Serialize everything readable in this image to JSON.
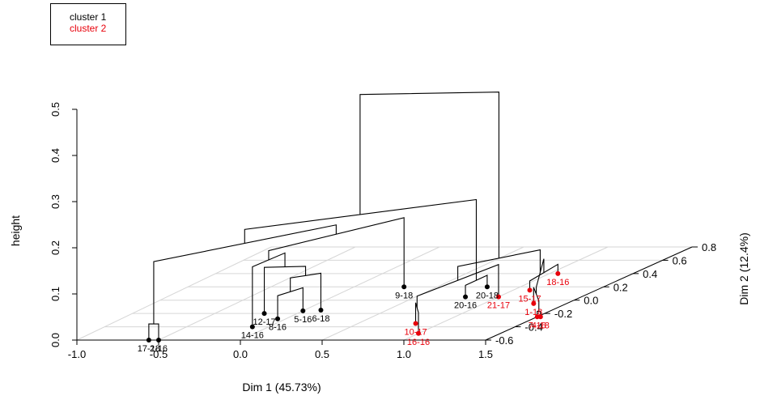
{
  "legend": {
    "items": [
      {
        "label": "cluster 1",
        "color": "#000000"
      },
      {
        "label": "cluster 2",
        "color": "#e8000b"
      }
    ]
  },
  "chart_data": {
    "type": "3d-dendrogram",
    "title": "",
    "xlabel": "Dim 1 (45.73%)",
    "ylabel": "Dim 2 (12.4%)",
    "zlabel": "height",
    "xlim": [
      -1.0,
      1.5
    ],
    "ylim": [
      -0.6,
      0.8
    ],
    "zlim": [
      0.0,
      0.5
    ],
    "x_ticks": [
      "-1.0",
      "-0.5",
      "0.0",
      "0.5",
      "1.0",
      "1.5"
    ],
    "y_ticks": [
      "-0.6",
      "-0.4",
      "-0.2",
      "0.0",
      "0.2",
      "0.4",
      "0.6",
      "0.8"
    ],
    "z_ticks": [
      "0.0",
      "0.1",
      "0.2",
      "0.3",
      "0.4",
      "0.5"
    ],
    "grid": true,
    "clusters": [
      {
        "name": "cluster 1",
        "color": "#000000",
        "points": [
          {
            "label": "17-18",
            "x": -0.56,
            "y": -0.6
          },
          {
            "label": "2-16",
            "x": -0.5,
            "y": -0.6
          },
          {
            "label": "14-16",
            "x": -0.1,
            "y": -0.4
          },
          {
            "label": "12-17",
            "x": -0.2,
            "y": -0.2
          },
          {
            "label": "8-16",
            "x": -0.05,
            "y": -0.28
          },
          {
            "label": "5-16",
            "x": 0.0,
            "y": -0.16
          },
          {
            "label": "6-18",
            "x": 0.1,
            "y": -0.15
          },
          {
            "label": "9-18",
            "x": 0.3,
            "y": 0.2
          },
          {
            "label": "20-18",
            "x": 0.8,
            "y": 0.2
          },
          {
            "label": "20-16",
            "x": 0.8,
            "y": 0.05
          }
        ]
      },
      {
        "name": "cluster 2",
        "color": "#e8000b",
        "points": [
          {
            "label": "10-17",
            "x": 0.85,
            "y": -0.35
          },
          {
            "label": "21-17",
            "x": 1.0,
            "y": 0.05
          },
          {
            "label": "16-16",
            "x": 1.0,
            "y": -0.5
          },
          {
            "label": "18-16",
            "x": 1.05,
            "y": 0.4
          },
          {
            "label": "15-17",
            "x": 1.1,
            "y": 0.15
          },
          {
            "label": "1-18",
            "x": 1.3,
            "y": -0.05
          },
          {
            "label": "7-16",
            "x": 1.5,
            "y": -0.25
          },
          {
            "label": "4-18",
            "x": 1.52,
            "y": -0.25
          }
        ]
      }
    ]
  }
}
